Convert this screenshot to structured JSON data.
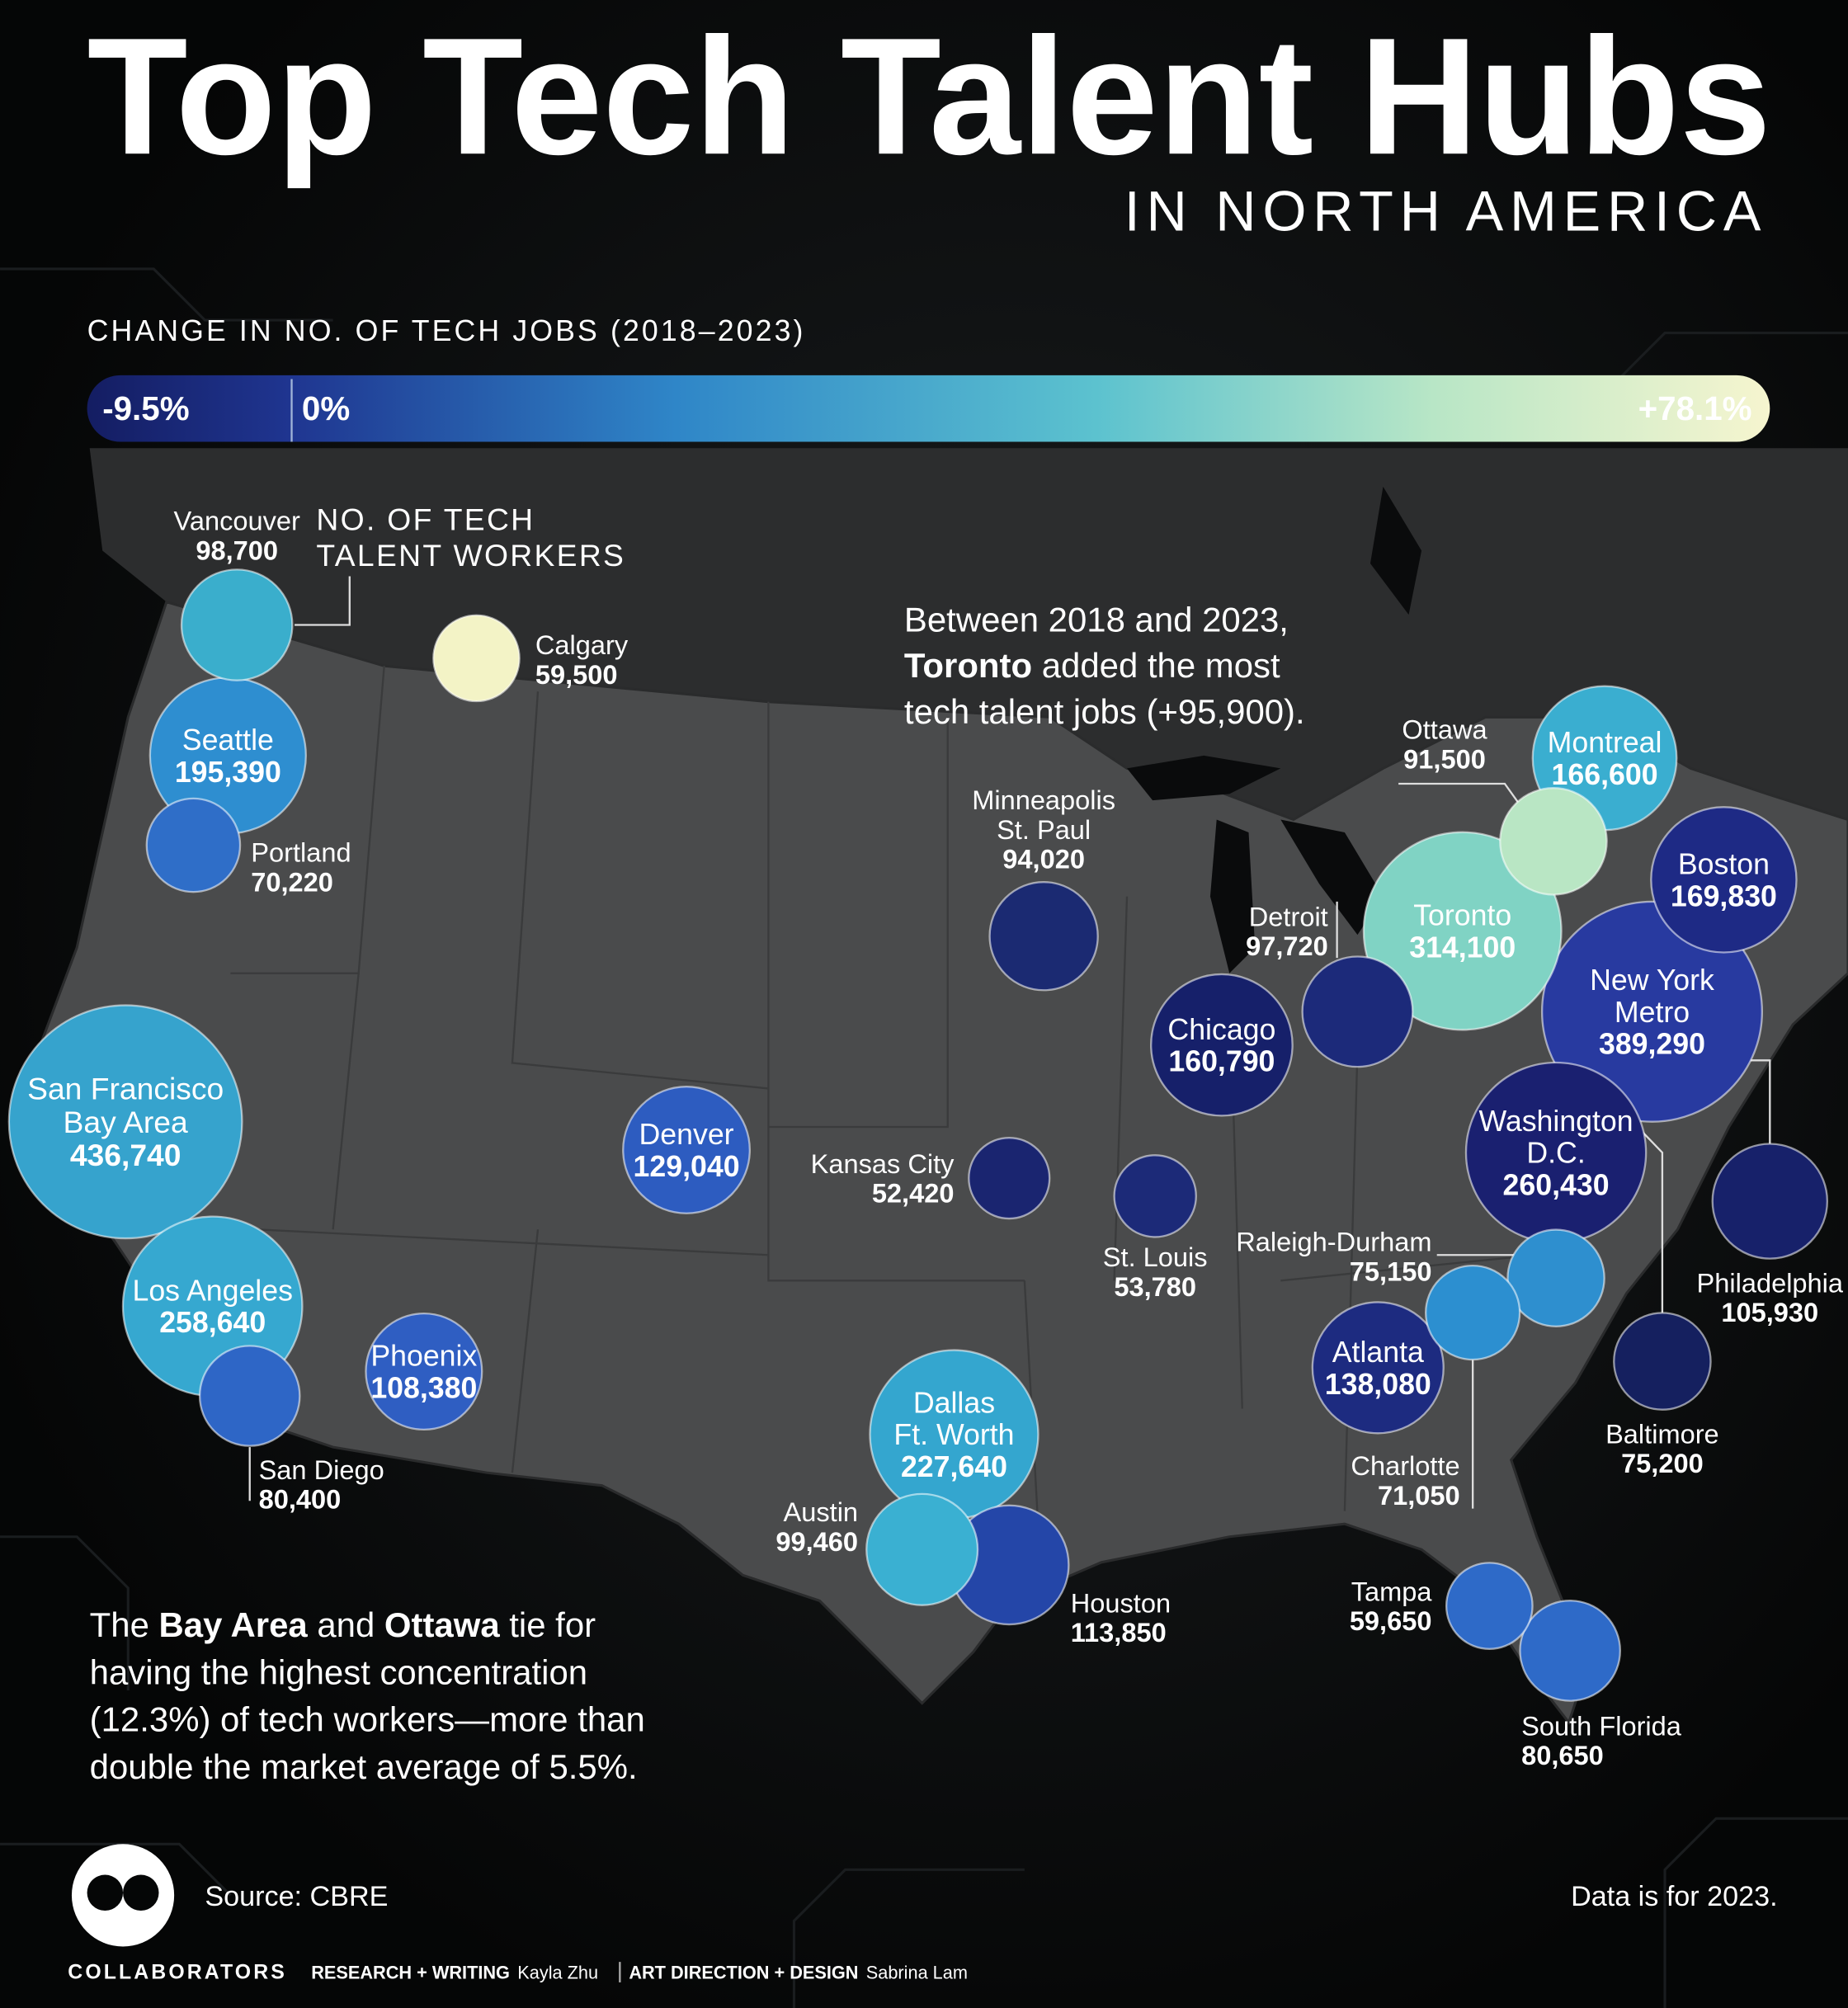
{
  "header": {
    "title": "Top Tech Talent Hubs",
    "subtitle": "IN NORTH AMERICA"
  },
  "color_legend": {
    "title": "CHANGE IN NO. OF TECH JOBS (2018–2023)",
    "stops": [
      {
        "value": -9.5,
        "label": "-9.5%"
      },
      {
        "value": 0,
        "label": "0%"
      },
      {
        "value": 78.1,
        "label": "+78.1%"
      }
    ]
  },
  "size_legend": {
    "title": [
      "NO. OF TECH",
      "TALENT WORKERS"
    ]
  },
  "cities": [
    {
      "name": [
        "Vancouver"
      ],
      "workers": 98700,
      "workers_label": "98,700",
      "color": "#3aaecc"
    },
    {
      "name": [
        "Calgary"
      ],
      "workers": 59500,
      "workers_label": "59,500",
      "color": "#f3f3c6"
    },
    {
      "name": [
        "Seattle"
      ],
      "workers": 195390,
      "workers_label": "195,390",
      "color": "#2e8ed0"
    },
    {
      "name": [
        "Portland"
      ],
      "workers": 70220,
      "workers_label": "70,220",
      "color": "#2f6ec8"
    },
    {
      "name": [
        "San Francisco",
        "Bay Area"
      ],
      "workers": 436740,
      "workers_label": "436,740",
      "color": "#36a3cd"
    },
    {
      "name": [
        "Los Angeles"
      ],
      "workers": 258640,
      "workers_label": "258,640",
      "color": "#36a8d0"
    },
    {
      "name": [
        "San Diego"
      ],
      "workers": 80400,
      "workers_label": "80,400",
      "color": "#2e66c6"
    },
    {
      "name": [
        "Phoenix"
      ],
      "workers": 108380,
      "workers_label": "108,380",
      "color": "#2f5ec2"
    },
    {
      "name": [
        "Denver"
      ],
      "workers": 129040,
      "workers_label": "129,040",
      "color": "#2d5cc0"
    },
    {
      "name": [
        "Kansas City"
      ],
      "workers": 52420,
      "workers_label": "52,420",
      "color": "#1a2570"
    },
    {
      "name": [
        "Minneapolis",
        "St. Paul"
      ],
      "workers": 94020,
      "workers_label": "94,020",
      "color": "#1b2a72"
    },
    {
      "name": [
        "Dallas",
        "Ft. Worth"
      ],
      "workers": 227640,
      "workers_label": "227,640",
      "color": "#34a6cf"
    },
    {
      "name": [
        "Austin"
      ],
      "workers": 99460,
      "workers_label": "99,460",
      "color": "#3ab0d2"
    },
    {
      "name": [
        "Houston"
      ],
      "workers": 113850,
      "workers_label": "113,850",
      "color": "#2446a8"
    },
    {
      "name": [
        "St. Louis"
      ],
      "workers": 53780,
      "workers_label": "53,780",
      "color": "#1c2a78"
    },
    {
      "name": [
        "Chicago"
      ],
      "workers": 160790,
      "workers_label": "160,790",
      "color": "#16206a"
    },
    {
      "name": [
        "Detroit"
      ],
      "workers": 97720,
      "workers_label": "97,720",
      "color": "#1c2a7a"
    },
    {
      "name": [
        "Toronto"
      ],
      "workers": 314100,
      "workers_label": "314,100",
      "color": "#80d3c4"
    },
    {
      "name": [
        "Ottawa"
      ],
      "workers": 91500,
      "workers_label": "91,500",
      "color": "#b9e6c4"
    },
    {
      "name": [
        "Montreal"
      ],
      "workers": 166600,
      "workers_label": "166,600",
      "color": "#3aaed0"
    },
    {
      "name": [
        "Boston"
      ],
      "workers": 169830,
      "workers_label": "169,830",
      "color": "#1e2a85"
    },
    {
      "name": [
        "New York",
        "Metro"
      ],
      "workers": 389290,
      "workers_label": "389,290",
      "color": "#283aa0"
    },
    {
      "name": [
        "Washington",
        "D.C."
      ],
      "workers": 260430,
      "workers_label": "260,430",
      "color": "#1a2070"
    },
    {
      "name": [
        "Philadelphia"
      ],
      "workers": 105930,
      "workers_label": "105,930",
      "color": "#17216a"
    },
    {
      "name": [
        "Raleigh-Durham"
      ],
      "workers": 75150,
      "workers_label": "75,150",
      "color": "#2e8fcf"
    },
    {
      "name": [
        "Charlotte"
      ],
      "workers": 71050,
      "workers_label": "71,050",
      "color": "#2c8fd0"
    },
    {
      "name": [
        "Atlanta"
      ],
      "workers": 138080,
      "workers_label": "138,080",
      "color": "#1d2b80"
    },
    {
      "name": [
        "Baltimore"
      ],
      "workers": 75200,
      "workers_label": "75,200",
      "color": "#15205f"
    },
    {
      "name": [
        "Tampa"
      ],
      "workers": 59650,
      "workers_label": "59,650",
      "color": "#2e6ac8"
    },
    {
      "name": [
        "South Florida"
      ],
      "workers": 80650,
      "workers_label": "80,650",
      "color": "#2e6ac8"
    }
  ],
  "annotations": [
    {
      "lines": [
        [
          {
            "text": "Between 2018 and 2023,"
          }
        ],
        [
          {
            "text": "Toronto",
            "bold": true
          },
          {
            "text": " added the most"
          }
        ],
        [
          {
            "text": "tech talent jobs (+95,900)."
          }
        ]
      ]
    },
    {
      "lines": [
        [
          {
            "text": "The "
          },
          {
            "text": "Bay Area",
            "bold": true
          },
          {
            "text": " and "
          },
          {
            "text": "Ottawa",
            "bold": true
          },
          {
            "text": " tie for"
          }
        ],
        [
          {
            "text": "having the highest concentration"
          }
        ],
        [
          {
            "text": "(12.3%) of tech workers—more than"
          }
        ],
        [
          {
            "text": "double the market average of 5.5%."
          }
        ]
      ]
    }
  ],
  "footer": {
    "source": "Source: CBRE",
    "note": "Data is for 2023.",
    "brand": "COLLABORATORS",
    "credits": [
      {
        "role": "RESEARCH + WRITING",
        "name": "Kayla Zhu"
      },
      {
        "role": "ART DIRECTION + DESIGN",
        "name": "Sabrina Lam"
      }
    ]
  }
}
